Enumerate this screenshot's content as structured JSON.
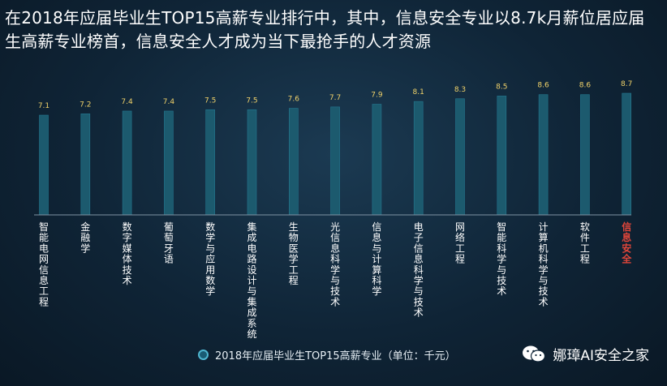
{
  "headline": "在2018年应届毕业生TOP15高薪专业排行中，其中，信息安全专业以8.7k月薪位居应届生高薪专业榜首，信息安全人才成为当下最抢手的人才资源",
  "legend_label": "2018年应届毕业生TOP15高薪专业（单位：千元）",
  "watermark": "娜璋AI安全之家",
  "colors": {
    "bar": "#1c5a6e",
    "bar_edge": "#23778f",
    "value_label": "#f2d36a",
    "category_label": "#ffffff",
    "highlight_label": "#e0463a",
    "baseline": "#7f93a3"
  },
  "chart_data": {
    "type": "bar",
    "title": "",
    "xlabel": "",
    "ylabel": "",
    "categories": [
      "智能电网信息工程",
      "金融学",
      "数字媒体技术",
      "葡萄牙语",
      "数学与应用数学",
      "集成电路设计与集成系统",
      "生物医学工程",
      "光信息科学与技术",
      "信息与计算科学",
      "电子信息科学与技术",
      "网络工程",
      "智能科学与技术",
      "计算机科学与技术",
      "软件工程",
      "信息安全"
    ],
    "values": [
      7.1,
      7.2,
      7.4,
      7.4,
      7.5,
      7.5,
      7.6,
      7.7,
      7.9,
      8.1,
      8.3,
      8.5,
      8.6,
      8.6,
      8.7
    ],
    "value_labels": [
      "7.1",
      "7.2",
      "7.4",
      "7.4",
      "7.5",
      "7.5",
      "7.6",
      "7.7",
      "7.9",
      "8.1",
      "8.3",
      "8.5",
      "8.6",
      "8.6",
      "8.7"
    ],
    "highlight_category": "信息安全",
    "grid": false,
    "legend_position": "bottom"
  }
}
